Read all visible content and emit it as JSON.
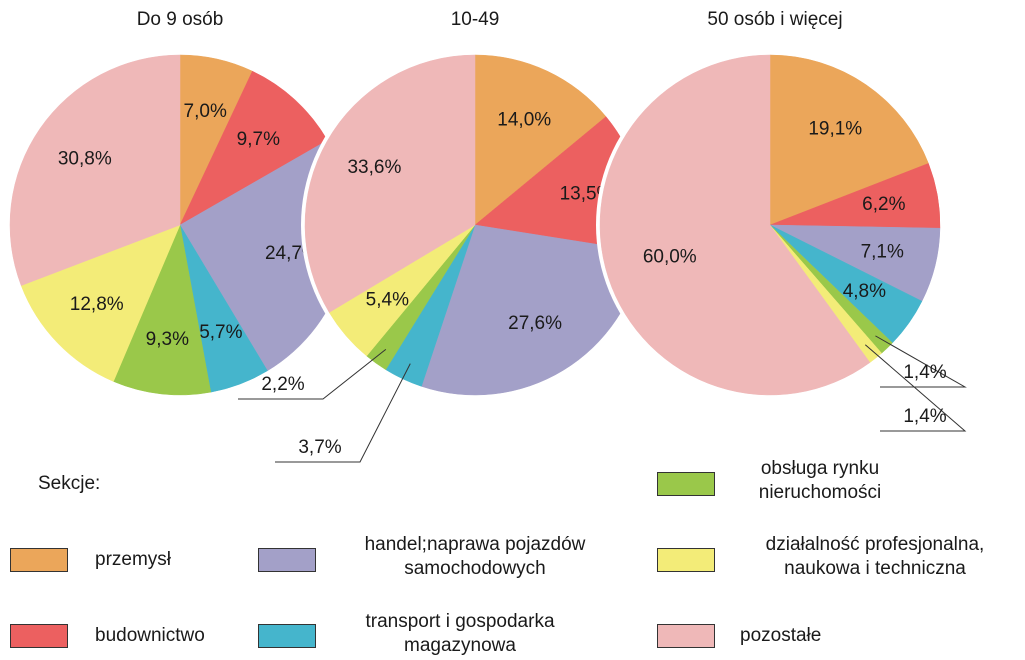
{
  "chart_data": [
    {
      "type": "pie",
      "title": "Do 9 osób",
      "categories": [
        "przemysł",
        "budownictwo",
        "handel;naprawa pojazdów samochodowych",
        "transport i gospodarka magazynowa",
        "obsługa rynku nieruchomości",
        "działalność profesjonalna, naukowa i techniczna",
        "pozostałe"
      ],
      "values": [
        7.0,
        9.7,
        24.7,
        5.7,
        9.3,
        12.8,
        30.8
      ],
      "value_labels": [
        "7,0%",
        "9,7%",
        "24,7%",
        "5,7%",
        "9,3%",
        "12,8%",
        "30,8%"
      ],
      "colors": [
        "#eba65a",
        "#ec6060",
        "#a3a0c8",
        "#45b5cc",
        "#9ac84a",
        "#f3ec78",
        "#efb8b8"
      ]
    },
    {
      "type": "pie",
      "title": "10-49",
      "categories": [
        "przemysł",
        "budownictwo",
        "handel;naprawa pojazdów samochodowych",
        "transport i gospodarka magazynowa",
        "obsługa rynku nieruchomości",
        "działalność profesjonalna, naukowa i techniczna",
        "pozostałe"
      ],
      "values": [
        14.0,
        13.5,
        27.6,
        3.7,
        2.2,
        5.4,
        33.6
      ],
      "value_labels": [
        "14,0%",
        "13,5%",
        "27,6%",
        "3,7%",
        "2,2%",
        "5,4%",
        "33,6%"
      ],
      "colors": [
        "#eba65a",
        "#ec6060",
        "#a3a0c8",
        "#45b5cc",
        "#9ac84a",
        "#f3ec78",
        "#efb8b8"
      ]
    },
    {
      "type": "pie",
      "title": "50 osób i więcej",
      "categories": [
        "przemysł",
        "budownictwo",
        "handel;naprawa pojazdów samochodowych",
        "transport i gospodarka magazynowa",
        "obsługa rynku nieruchomości",
        "działalność profesjonalna, naukowa i techniczna",
        "pozostałe"
      ],
      "values": [
        19.1,
        6.2,
        7.1,
        4.8,
        1.4,
        1.4,
        60.0
      ],
      "value_labels": [
        "19,1%",
        "6,2%",
        "7,1%",
        "4,8%",
        "1,4%",
        "1,4%",
        "60,0%"
      ],
      "colors": [
        "#eba65a",
        "#ec6060",
        "#a3a0c8",
        "#45b5cc",
        "#9ac84a",
        "#f3ec78",
        "#efb8b8"
      ]
    }
  ],
  "legend_title": "Sekcje:"
}
